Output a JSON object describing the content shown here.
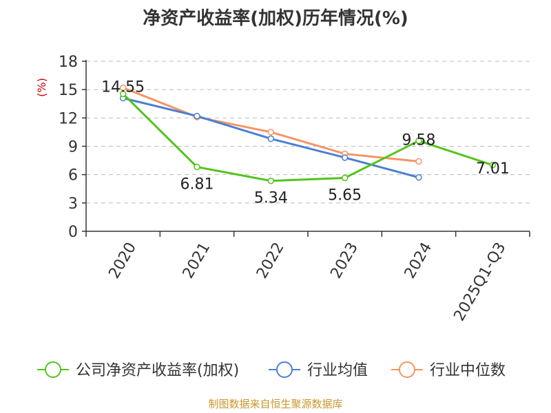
{
  "title": "净资产收益率(加权)历年情况(%)",
  "source": "制图数据来自恒生聚源数据库",
  "colors": {
    "company": "#52c41a",
    "industry_avg": "#4a7fd4",
    "industry_median": "#f59464",
    "grid": "#bbbbbb",
    "unit": "#cc0000"
  },
  "chart_data": {
    "type": "line",
    "title": "净资产收益率(加权)历年情况(%)",
    "ylabel": "(%)",
    "xlabel": "",
    "ylim": [
      0,
      18
    ],
    "yticks": [
      0,
      3,
      6,
      9,
      12,
      15,
      18
    ],
    "categories": [
      "2020",
      "2021",
      "2022",
      "2023",
      "2024",
      "2025Q1-Q3"
    ],
    "series": [
      {
        "name": "公司净资产收益率(加权)",
        "values": [
          14.55,
          6.81,
          5.34,
          5.65,
          9.58,
          7.01
        ],
        "labels": [
          "14.55",
          "6.81",
          "5.34",
          "5.65",
          "9.58",
          "7.01"
        ]
      },
      {
        "name": "行业均值",
        "values": [
          14.1,
          12.2,
          9.8,
          7.8,
          5.7,
          null
        ]
      },
      {
        "name": "行业中位数",
        "values": [
          15.2,
          12.1,
          10.5,
          8.2,
          7.4,
          null
        ]
      }
    ]
  }
}
